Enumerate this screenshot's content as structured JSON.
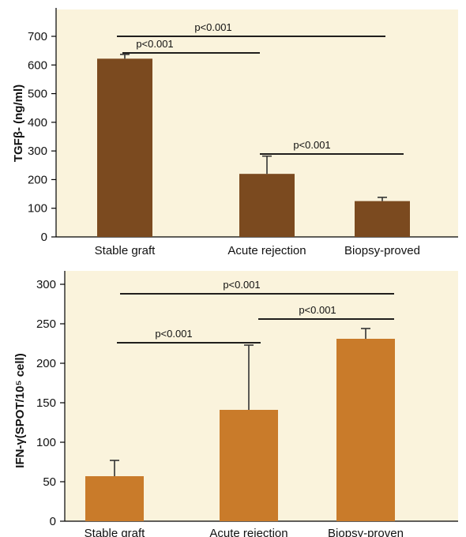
{
  "chart_data": [
    {
      "type": "bar",
      "ylabel": "TGFβ- (ng/ml)",
      "categories": [
        "Stable graft",
        "Acute rejection",
        "Biopsy-proved"
      ],
      "values": [
        622,
        220,
        125
      ],
      "errors": [
        15,
        62,
        13
      ],
      "ylim": [
        0,
        700
      ],
      "yticks": [
        0,
        100,
        200,
        300,
        400,
        500,
        600,
        700
      ],
      "bar_color": "#7b4a1f",
      "plot_bg": "#faf3dc",
      "grid": false,
      "legend": "none",
      "significance": [
        {
          "label": "p<0.001",
          "from": 0,
          "to": 2
        },
        {
          "label": "p<0.001",
          "from": 0,
          "to": 1
        },
        {
          "label": "p<0.001",
          "from": 1,
          "to": 2
        }
      ]
    },
    {
      "type": "bar",
      "ylabel": "IFN-γ(SPOT/10⁵ cell)",
      "categories": [
        "Stable graft",
        "Acute rejection",
        "Biopsy-proven"
      ],
      "values": [
        57,
        141,
        231
      ],
      "errors": [
        20,
        82,
        13
      ],
      "ylim": [
        0,
        300
      ],
      "yticks": [
        0,
        50,
        100,
        150,
        200,
        250,
        300
      ],
      "bar_color": "#c97b2a",
      "plot_bg": "#faf3dc",
      "grid": false,
      "legend": "none",
      "significance": [
        {
          "label": "p<0.001",
          "from": 0,
          "to": 2
        },
        {
          "label": "p<0.001",
          "from": 0,
          "to": 1
        },
        {
          "label": "p<0.001",
          "from": 1,
          "to": 2
        }
      ]
    }
  ]
}
